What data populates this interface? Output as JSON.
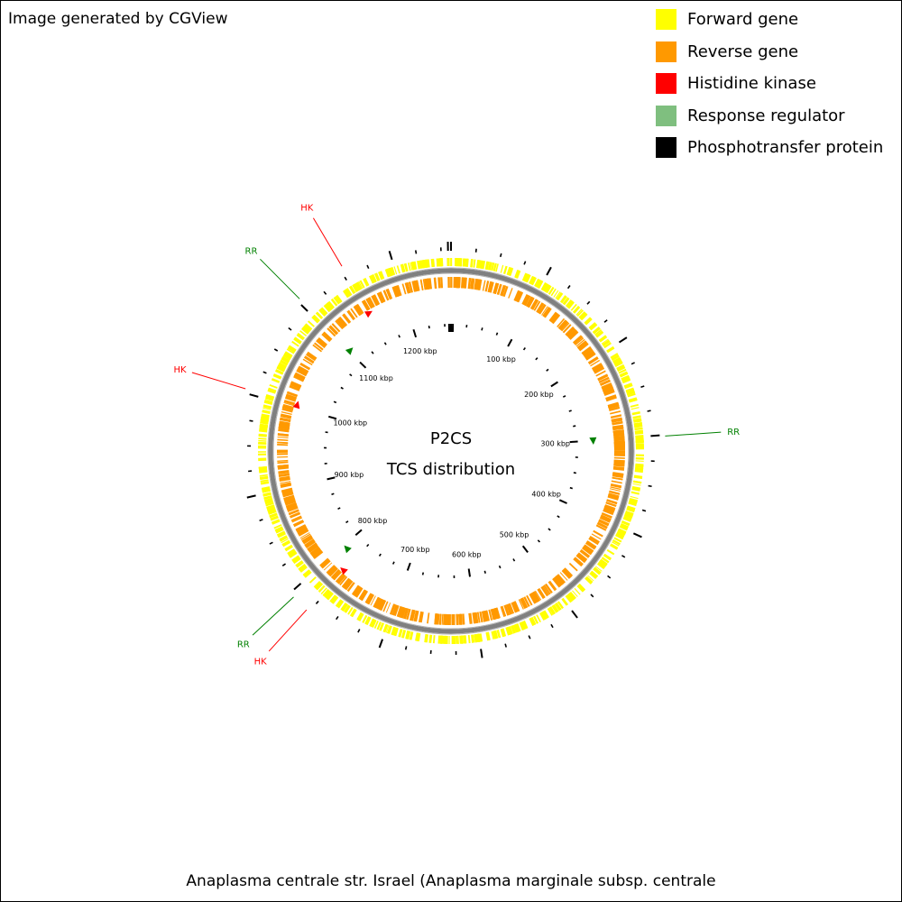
{
  "credit": "Image generated by CGView",
  "legend": [
    {
      "label": "Forward gene",
      "color": "#ffff00",
      "icon": "yellow-square"
    },
    {
      "label": "Reverse gene",
      "color": "#ff9900",
      "icon": "orange-square"
    },
    {
      "label": "Histidine kinase",
      "color": "#ff0000",
      "icon": "red-square"
    },
    {
      "label": "Response regulator",
      "color": "#7fbf7f",
      "icon": "green-square"
    },
    {
      "label": "Phosphotransfer protein",
      "color": "#000000",
      "icon": "black-square"
    }
  ],
  "map": {
    "center_title": "P2CS",
    "center_subtitle": "TCS distribution",
    "genome_length_kbp": 1260,
    "backbone_color": "#808080",
    "forward_color": "#ffff00",
    "reverse_color": "#ff9900",
    "hk_color": "#ff0000",
    "rr_color": "#008000",
    "tick_labels": [
      {
        "kbp": 100,
        "label": "100 kbp"
      },
      {
        "kbp": 200,
        "label": "200 kbp"
      },
      {
        "kbp": 300,
        "label": "300 kbp"
      },
      {
        "kbp": 400,
        "label": "400 kbp"
      },
      {
        "kbp": 500,
        "label": "500 kbp"
      },
      {
        "kbp": 600,
        "label": "600 kbp"
      },
      {
        "kbp": 700,
        "label": "700 kbp"
      },
      {
        "kbp": 800,
        "label": "800 kbp"
      },
      {
        "kbp": 900,
        "label": "900 kbp"
      },
      {
        "kbp": 1000,
        "label": "1000 kbp"
      },
      {
        "kbp": 1100,
        "label": "1100 kbp"
      },
      {
        "kbp": 1200,
        "label": "1200 kbp"
      }
    ],
    "features": [
      {
        "label": "RR",
        "type": "rr",
        "kbp": 301
      },
      {
        "label": "HK",
        "type": "hk",
        "kbp": 1153
      },
      {
        "label": "RR",
        "type": "rr",
        "kbp": 1103
      },
      {
        "label": "HK",
        "type": "hk",
        "kbp": 1004
      },
      {
        "label": "RR",
        "type": "rr",
        "kbp": 795
      },
      {
        "label": "HK",
        "type": "hk",
        "kbp": 778
      }
    ]
  },
  "footer": "Anaplasma centrale str. Israel (Anaplasma marginale subsp. centrale"
}
